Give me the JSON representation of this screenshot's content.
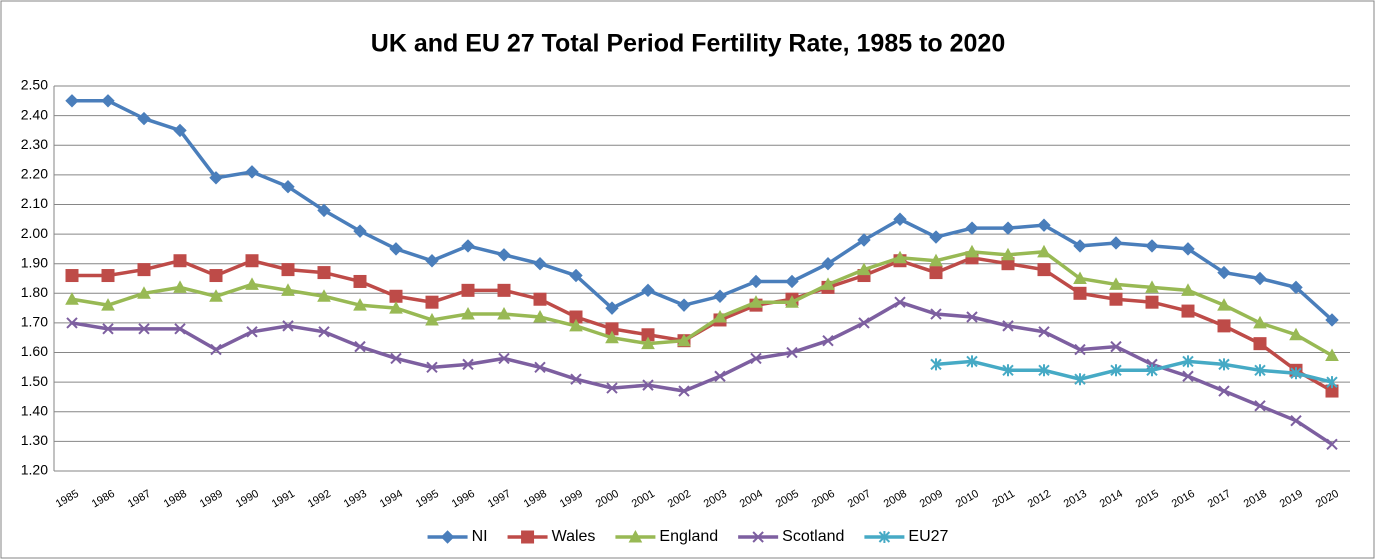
{
  "chart_data": {
    "type": "line",
    "title": "UK and EU 27 Total Period Fertility Rate, 1985 to 2020",
    "categories": [
      "1985",
      "1986",
      "1987",
      "1988",
      "1989",
      "1990",
      "1991",
      "1992",
      "1993",
      "1994",
      "1995",
      "1996",
      "1997",
      "1998",
      "1999",
      "2000",
      "2001",
      "2002",
      "2003",
      "2004",
      "2005",
      "2006",
      "2007",
      "2008",
      "2009",
      "2010",
      "2011",
      "2012",
      "2013",
      "2014",
      "2015",
      "2016",
      "2017",
      "2018",
      "2019",
      "2020"
    ],
    "series": [
      {
        "name": "NI",
        "color": "#4a7ebb",
        "marker": "diamond",
        "values": [
          2.45,
          2.45,
          2.39,
          2.35,
          2.19,
          2.21,
          2.16,
          2.08,
          2.01,
          1.95,
          1.91,
          1.96,
          1.93,
          1.9,
          1.86,
          1.75,
          1.81,
          1.76,
          1.79,
          1.84,
          1.84,
          1.9,
          1.98,
          2.05,
          1.99,
          2.02,
          2.02,
          2.03,
          1.96,
          1.97,
          1.96,
          1.95,
          1.87,
          1.85,
          1.82,
          1.71
        ]
      },
      {
        "name": "Wales",
        "color": "#be4b48",
        "marker": "square",
        "values": [
          1.86,
          1.86,
          1.88,
          1.91,
          1.86,
          1.91,
          1.88,
          1.87,
          1.84,
          1.79,
          1.77,
          1.81,
          1.81,
          1.78,
          1.72,
          1.68,
          1.66,
          1.64,
          1.71,
          1.76,
          1.78,
          1.82,
          1.86,
          1.91,
          1.87,
          1.92,
          1.9,
          1.88,
          1.8,
          1.78,
          1.77,
          1.74,
          1.69,
          1.63,
          1.54,
          1.47
        ]
      },
      {
        "name": "England",
        "color": "#98b954",
        "marker": "triangle",
        "values": [
          1.78,
          1.76,
          1.8,
          1.82,
          1.79,
          1.83,
          1.81,
          1.79,
          1.76,
          1.75,
          1.71,
          1.73,
          1.73,
          1.72,
          1.69,
          1.65,
          1.63,
          1.64,
          1.72,
          1.77,
          1.77,
          1.83,
          1.88,
          1.92,
          1.91,
          1.94,
          1.93,
          1.94,
          1.85,
          1.83,
          1.82,
          1.81,
          1.76,
          1.7,
          1.66,
          1.59
        ]
      },
      {
        "name": "Scotland",
        "color": "#7d5fa0",
        "marker": "x",
        "values": [
          1.7,
          1.68,
          1.68,
          1.68,
          1.61,
          1.67,
          1.69,
          1.67,
          1.62,
          1.58,
          1.55,
          1.56,
          1.58,
          1.55,
          1.51,
          1.48,
          1.49,
          1.47,
          1.52,
          1.58,
          1.6,
          1.64,
          1.7,
          1.77,
          1.73,
          1.72,
          1.69,
          1.67,
          1.61,
          1.62,
          1.56,
          1.52,
          1.47,
          1.42,
          1.37,
          1.29
        ]
      },
      {
        "name": "EU27",
        "color": "#46aac5",
        "marker": "asterisk",
        "values": [
          null,
          null,
          null,
          null,
          null,
          null,
          null,
          null,
          null,
          null,
          null,
          null,
          null,
          null,
          null,
          null,
          null,
          null,
          null,
          null,
          null,
          null,
          null,
          null,
          1.56,
          1.57,
          1.54,
          1.54,
          1.51,
          1.54,
          1.54,
          1.57,
          1.56,
          1.54,
          1.53,
          1.5
        ]
      }
    ],
    "ylim": [
      1.2,
      2.5
    ],
    "yticks": [
      {
        "value": 1.2,
        "label": "1.20"
      },
      {
        "value": 1.3,
        "label": "1.30"
      },
      {
        "value": 1.4,
        "label": "1.40"
      },
      {
        "value": 1.5,
        "label": "1.50"
      },
      {
        "value": 1.6,
        "label": "1.60"
      },
      {
        "value": 1.7,
        "label": "1.70"
      },
      {
        "value": 1.8,
        "label": "1.80"
      },
      {
        "value": 1.9,
        "label": "1.90"
      },
      {
        "value": 2.0,
        "label": "2.00"
      },
      {
        "value": 2.1,
        "label": "2.10"
      },
      {
        "value": 2.2,
        "label": "2.20"
      },
      {
        "value": 2.3,
        "label": "2.30"
      },
      {
        "value": 2.4,
        "label": "2.40"
      },
      {
        "value": 2.5,
        "label": "2.50"
      }
    ],
    "grid": true,
    "legend": "bottom"
  }
}
